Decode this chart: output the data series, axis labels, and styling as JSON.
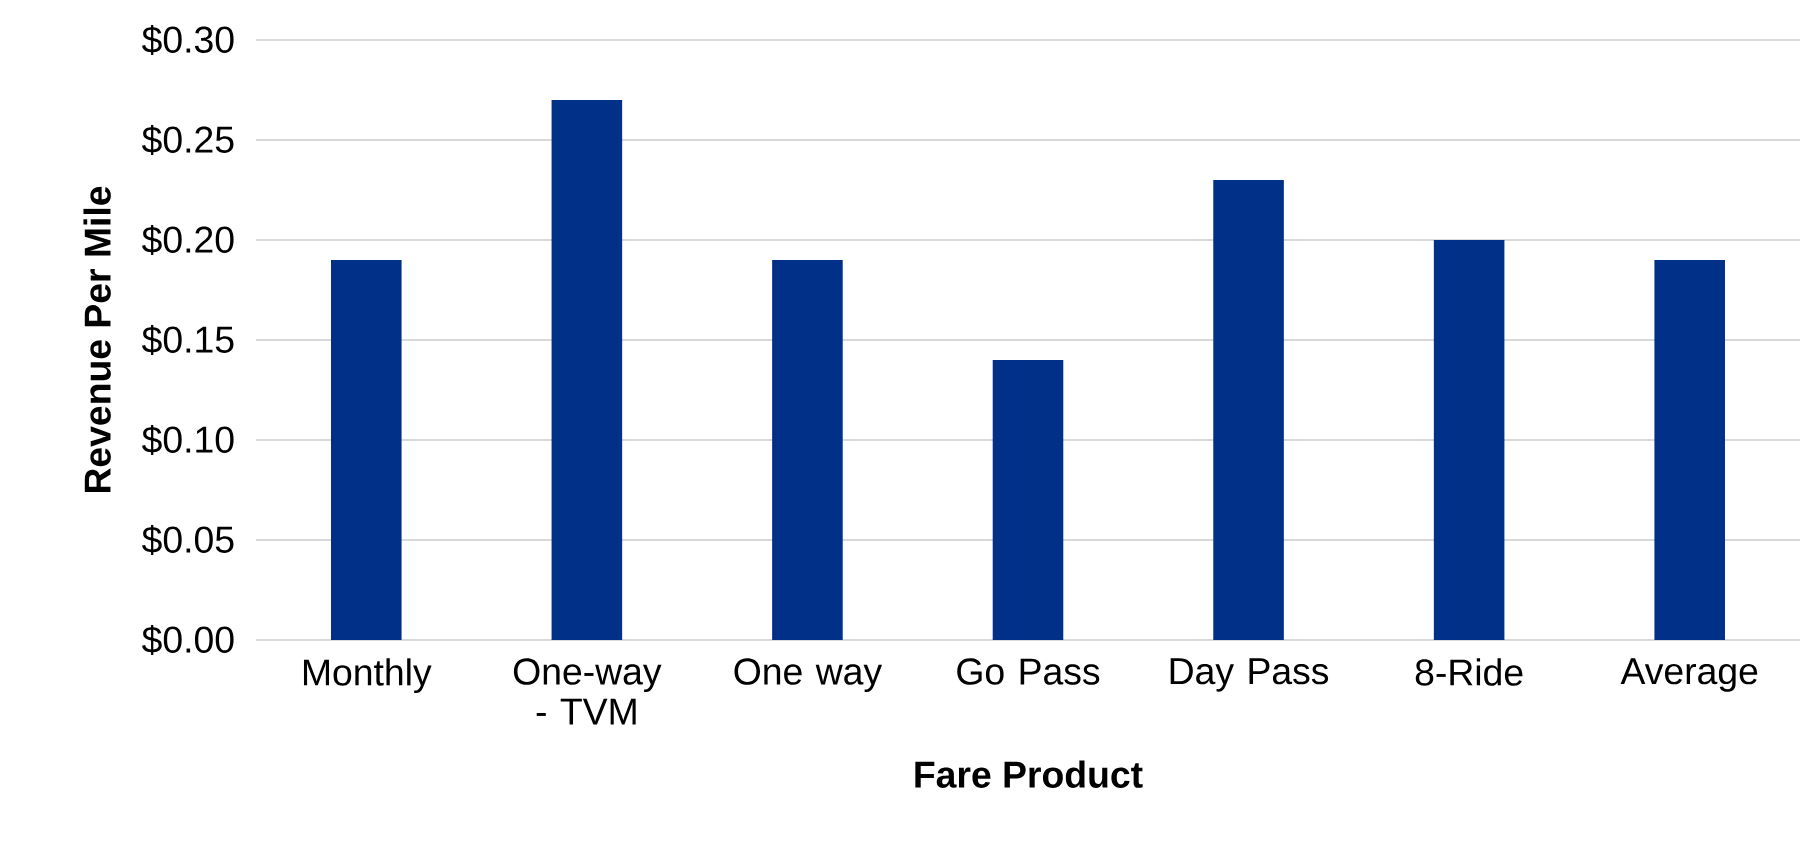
{
  "chart_data": {
    "type": "bar",
    "xlabel": "Fare Product",
    "ylabel": "Revenue Per Mile",
    "categories": [
      "Monthly",
      "One-way - TVM",
      "One way",
      "Go Pass",
      "Day Pass",
      "8-Ride",
      "Average"
    ],
    "values": [
      0.19,
      0.27,
      0.19,
      0.14,
      0.23,
      0.2,
      0.19
    ],
    "color": "#003087",
    "ylim": [
      0,
      0.3
    ],
    "yticks": [
      {
        "value": 0,
        "label": "$0.00"
      },
      {
        "value": 0.05,
        "label": "$0.05"
      },
      {
        "value": 0.1,
        "label": "$0.10"
      },
      {
        "value": 0.15,
        "label": "$0.15"
      },
      {
        "value": 0.2,
        "label": "$0.20"
      },
      {
        "value": 0.25,
        "label": "$0.25"
      },
      {
        "value": 0.3,
        "label": "$0.30"
      }
    ],
    "grid": "y"
  }
}
